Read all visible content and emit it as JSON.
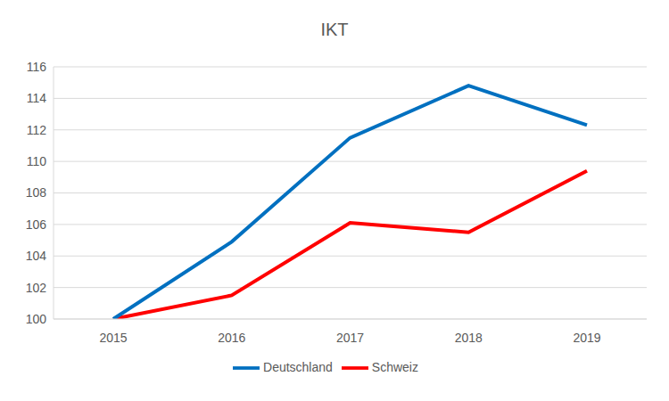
{
  "chart_data": {
    "type": "line",
    "title": "IKT",
    "categories": [
      "2015",
      "2016",
      "2017",
      "2018",
      "2019"
    ],
    "series": [
      {
        "name": "Schweiz",
        "color": "#ff0000",
        "values": [
          100,
          101.5,
          106.1,
          105.5,
          109.4
        ]
      },
      {
        "name": "Deutschland",
        "color": "#0070c0",
        "values": [
          100,
          104.9,
          111.5,
          114.8,
          112.3
        ]
      }
    ],
    "ylim": [
      100,
      116
    ],
    "yticks": [
      100,
      102,
      104,
      106,
      108,
      110,
      112,
      114,
      116
    ],
    "grid": true,
    "legend": "bottom"
  }
}
